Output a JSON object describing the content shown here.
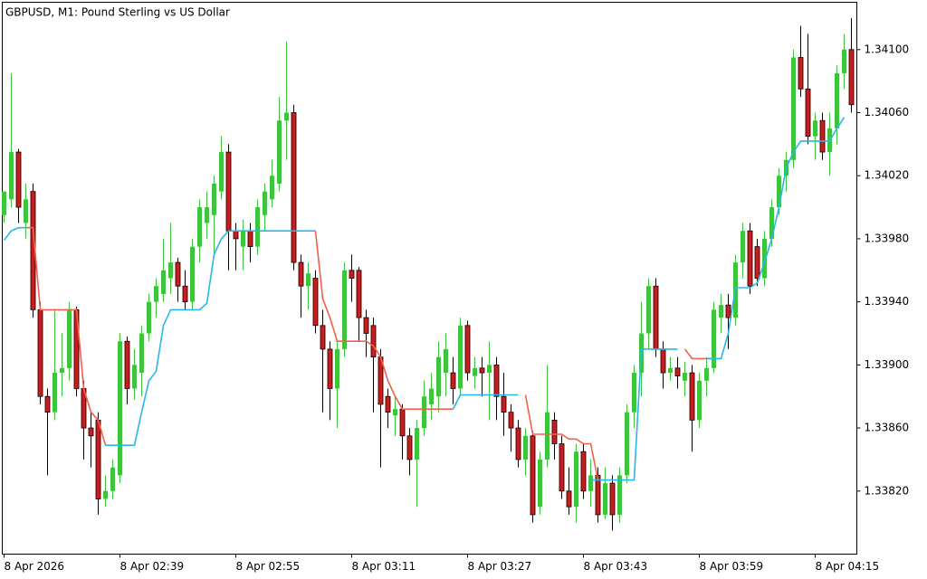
{
  "chart_data": {
    "type": "candlestick",
    "title": "GBPUSD, M1:  Pound Sterling vs US Dollar",
    "up_color": "#3cc43c",
    "down_color": "#d01b1b",
    "down_outline": "#000000",
    "xlim": [
      -0.25,
      117.75
    ],
    "ylim": [
      1.3378,
      1.3413
    ],
    "xticks": [
      {
        "value": 0,
        "label": "8 Apr 2026"
      },
      {
        "value": 16,
        "label": "8 Apr 02:39"
      },
      {
        "value": 32,
        "label": "8 Apr 02:55"
      },
      {
        "value": 48,
        "label": "8 Apr 03:11"
      },
      {
        "value": 64,
        "label": "8 Apr 03:27"
      },
      {
        "value": 80,
        "label": "8 Apr 03:43"
      },
      {
        "value": 96,
        "label": "8 Apr 03:59"
      },
      {
        "value": 112,
        "label": "8 Apr 04:15"
      }
    ],
    "yticks": [
      {
        "value": 1.341,
        "label": "1.34100"
      },
      {
        "value": 1.3406,
        "label": "1.34060"
      },
      {
        "value": 1.3402,
        "label": "1.34020"
      },
      {
        "value": 1.3398,
        "label": "1.33980"
      },
      {
        "value": 1.3394,
        "label": "1.33940"
      },
      {
        "value": 1.339,
        "label": "1.33900"
      },
      {
        "value": 1.3386,
        "label": "1.33860"
      },
      {
        "value": 1.3382,
        "label": "1.33820"
      }
    ],
    "open": [
      1.33995,
      1.34005,
      1.34035,
      1.3399,
      1.3401,
      1.33935,
      1.3388,
      1.3387,
      1.33895,
      1.33898,
      1.33935,
      1.33885,
      1.3386,
      1.33865,
      1.33815,
      1.3382,
      1.3383,
      1.33915,
      1.33885,
      1.33895,
      1.3392,
      1.3394,
      1.33945,
      1.33955,
      1.33965,
      1.3395,
      1.3394,
      1.33975,
      1.3399,
      1.33995,
      1.3401,
      1.34035,
      1.33985,
      1.33975,
      1.33985,
      1.33975,
      1.33995,
      1.34005,
      1.34015,
      1.34055,
      1.3406,
      1.33965,
      1.3395,
      1.33955,
      1.33925,
      1.3391,
      1.33885,
      1.3391,
      1.3396,
      1.3396,
      1.3393,
      1.33925,
      1.33905,
      1.3388,
      1.33868,
      1.33872,
      1.33855,
      1.3384,
      1.3386,
      1.33875,
      1.3388,
      1.33895,
      1.33895,
      1.33885,
      1.33925,
      1.33893,
      1.33898,
      1.33895,
      1.339,
      1.3388,
      1.3387,
      1.3386,
      1.3384,
      1.33855,
      1.3381,
      1.3384,
      1.33865,
      1.3385,
      1.3382,
      1.3381,
      1.33845,
      1.3382,
      1.3383,
      1.33805,
      1.33825,
      1.33805,
      1.3383,
      1.3387,
      1.33895,
      1.3392,
      1.3395,
      1.3391,
      1.33895,
      1.33898,
      1.3389,
      1.33895,
      1.33865,
      1.3389,
      1.33898,
      1.3393,
      1.33938,
      1.3393,
      1.33965,
      1.33985,
      1.33975,
      1.33955,
      1.3398,
      1.34,
      1.3402,
      1.3403,
      1.34095,
      1.34075,
      1.34045,
      1.34055,
      1.34035,
      1.3405,
      1.34085,
      1.341
    ],
    "high": [
      1.3401,
      1.34085,
      1.34037,
      1.34015,
      1.34015,
      1.3394,
      1.33885,
      1.33935,
      1.3392,
      1.3394,
      1.33937,
      1.3389,
      1.3387,
      1.3387,
      1.3383,
      1.3384,
      1.3392,
      1.33918,
      1.3391,
      1.33925,
      1.33945,
      1.33955,
      1.3398,
      1.3399,
      1.33968,
      1.3396,
      1.3398,
      1.34005,
      1.3401,
      1.3402,
      1.34045,
      1.3404,
      1.3399,
      1.33992,
      1.3399,
      1.34005,
      1.34015,
      1.3403,
      1.3407,
      1.34105,
      1.34065,
      1.3397,
      1.33965,
      1.3396,
      1.33935,
      1.33915,
      1.33915,
      1.33965,
      1.3397,
      1.33962,
      1.33935,
      1.3393,
      1.3391,
      1.33885,
      1.3388,
      1.33875,
      1.3386,
      1.33865,
      1.3389,
      1.33895,
      1.33915,
      1.3392,
      1.33905,
      1.3393,
      1.33928,
      1.33905,
      1.33905,
      1.33915,
      1.33905,
      1.33895,
      1.33875,
      1.33865,
      1.3386,
      1.33858,
      1.33845,
      1.339,
      1.3387,
      1.33855,
      1.33835,
      1.3385,
      1.3385,
      1.3384,
      1.33835,
      1.33835,
      1.3383,
      1.33835,
      1.33875,
      1.339,
      1.3394,
      1.33955,
      1.33955,
      1.33915,
      1.33905,
      1.33905,
      1.33902,
      1.339,
      1.33895,
      1.33905,
      1.3394,
      1.33945,
      1.33945,
      1.3397,
      1.3399,
      1.3399,
      1.3398,
      1.33985,
      1.34005,
      1.34025,
      1.34035,
      1.341,
      1.34115,
      1.3411,
      1.3406,
      1.3406,
      1.3406,
      1.3409,
      1.3411,
      1.3412
    ],
    "low": [
      1.3399,
      1.34,
      1.3399,
      1.3398,
      1.3393,
      1.33875,
      1.3383,
      1.33865,
      1.3388,
      1.3389,
      1.3388,
      1.3384,
      1.33835,
      1.33805,
      1.3381,
      1.33815,
      1.33825,
      1.33875,
      1.33878,
      1.3388,
      1.33915,
      1.3393,
      1.3394,
      1.33945,
      1.3394,
      1.33935,
      1.33935,
      1.33965,
      1.3398,
      1.3397,
      1.34005,
      1.3396,
      1.3396,
      1.3396,
      1.33965,
      1.3397,
      1.33985,
      1.34,
      1.3401,
      1.3403,
      1.3396,
      1.3393,
      1.33935,
      1.3392,
      1.3387,
      1.33865,
      1.3386,
      1.33905,
      1.3394,
      1.33915,
      1.33905,
      1.3387,
      1.33835,
      1.3386,
      1.33855,
      1.3384,
      1.3383,
      1.3381,
      1.33855,
      1.33865,
      1.3387,
      1.3388,
      1.33875,
      1.3388,
      1.3389,
      1.33885,
      1.3388,
      1.33865,
      1.33865,
      1.33855,
      1.33845,
      1.33835,
      1.3383,
      1.338,
      1.33805,
      1.33835,
      1.3384,
      1.33815,
      1.33805,
      1.338,
      1.33815,
      1.3381,
      1.338,
      1.33802,
      1.33795,
      1.338,
      1.33825,
      1.3386,
      1.3388,
      1.3391,
      1.33905,
      1.33885,
      1.3389,
      1.33885,
      1.3388,
      1.33845,
      1.3386,
      1.3388,
      1.33895,
      1.3392,
      1.3391,
      1.33925,
      1.33955,
      1.33945,
      1.3395,
      1.3395,
      1.33975,
      1.33995,
      1.3401,
      1.34025,
      1.3407,
      1.3404,
      1.3403,
      1.3403,
      1.3402,
      1.3404,
      1.34075,
      1.3406
    ],
    "close": [
      1.3401,
      1.34035,
      1.34,
      1.34005,
      1.33935,
      1.3388,
      1.3387,
      1.33895,
      1.33898,
      1.33935,
      1.33885,
      1.3386,
      1.33855,
      1.33815,
      1.3382,
      1.33835,
      1.33915,
      1.33885,
      1.339,
      1.3392,
      1.3394,
      1.3395,
      1.3396,
      1.33965,
      1.3395,
      1.3394,
      1.33975,
      1.34,
      1.34,
      1.34015,
      1.34035,
      1.33985,
      1.3398,
      1.33985,
      1.33975,
      1.34,
      1.3401,
      1.3402,
      1.34055,
      1.3406,
      1.33965,
      1.3395,
      1.33958,
      1.33925,
      1.3391,
      1.33885,
      1.3391,
      1.3396,
      1.33955,
      1.3393,
      1.3392,
      1.33905,
      1.33875,
      1.3387,
      1.33872,
      1.33855,
      1.3384,
      1.3386,
      1.3388,
      1.33885,
      1.33905,
      1.3391,
      1.33885,
      1.33925,
      1.33895,
      1.33898,
      1.33895,
      1.339,
      1.3388,
      1.3387,
      1.3386,
      1.3384,
      1.33855,
      1.33805,
      1.3384,
      1.3387,
      1.3385,
      1.3382,
      1.3381,
      1.33845,
      1.3382,
      1.3383,
      1.33805,
      1.33825,
      1.33805,
      1.3383,
      1.3387,
      1.33895,
      1.3392,
      1.3395,
      1.3391,
      1.33895,
      1.33898,
      1.33893,
      1.33895,
      1.33865,
      1.3389,
      1.33898,
      1.33935,
      1.33938,
      1.3393,
      1.33965,
      1.33985,
      1.3395,
      1.33955,
      1.3398,
      1.34,
      1.3402,
      1.3403,
      1.34095,
      1.34075,
      1.34045,
      1.34055,
      1.34035,
      1.3405,
      1.34085,
      1.341,
      1.34065
    ],
    "lines": [
      {
        "color": "#f0604c",
        "values": [
          null,
          null,
          null,
          1.33987,
          1.33987,
          1.33935,
          1.33935,
          1.33935,
          1.33935,
          1.33935,
          1.33935,
          1.33885,
          1.3387,
          1.33865,
          1.33849,
          null,
          null,
          null,
          null,
          null,
          null,
          null,
          null,
          null,
          null,
          null,
          null,
          null,
          null,
          null,
          null,
          null,
          null,
          null,
          null,
          null,
          null,
          null,
          null,
          null,
          null,
          null,
          null,
          1.33985,
          1.33942,
          1.3393,
          1.33915,
          1.33915,
          1.33915,
          1.33915,
          1.33915,
          1.33912,
          1.33905,
          1.3389,
          1.3388,
          1.33872,
          1.33872,
          1.33872,
          1.33872,
          1.33872,
          1.33872,
          1.33872,
          1.33872,
          null,
          null,
          null,
          null,
          null,
          null,
          null,
          null,
          null,
          1.33881,
          1.33856,
          1.33856,
          1.33856,
          1.33856,
          1.33856,
          1.33853,
          1.33853,
          1.3385,
          1.3385,
          1.33827,
          null,
          null,
          null,
          null,
          null,
          null,
          null,
          null,
          null,
          null,
          null,
          1.3391,
          1.33904,
          1.33904,
          1.33904,
          1.33904,
          null,
          null,
          null,
          null,
          null,
          null,
          null,
          null,
          null,
          null,
          null,
          null,
          null,
          null,
          null,
          null,
          null,
          null,
          null
        ]
      },
      {
        "color": "#29b6e8",
        "values": [
          1.33979,
          1.33985,
          1.33987,
          1.33987,
          null,
          null,
          null,
          null,
          null,
          null,
          null,
          null,
          null,
          null,
          1.33849,
          1.33849,
          1.33849,
          1.33849,
          1.33849,
          1.3387,
          1.3389,
          1.33896,
          1.33925,
          1.33935,
          1.33935,
          1.33935,
          1.33935,
          1.33935,
          1.33939,
          1.3397,
          1.3398,
          1.33985,
          1.33985,
          1.33985,
          1.33985,
          1.33985,
          1.33985,
          1.33985,
          1.33985,
          1.33985,
          1.33985,
          1.33985,
          1.33985,
          1.33985,
          null,
          null,
          null,
          null,
          null,
          null,
          null,
          null,
          null,
          null,
          null,
          null,
          null,
          null,
          null,
          null,
          null,
          null,
          1.33872,
          1.33881,
          1.33881,
          1.33881,
          1.33881,
          1.33881,
          1.33881,
          1.33881,
          1.33881,
          1.33881,
          null,
          null,
          null,
          null,
          null,
          null,
          null,
          null,
          null,
          1.33827,
          1.33827,
          1.33827,
          1.33827,
          1.33827,
          1.33827,
          1.33827,
          1.3391,
          1.3391,
          1.3391,
          1.3391,
          1.3391,
          1.3391,
          null,
          null,
          null,
          1.33904,
          1.33904,
          1.33904,
          1.3392,
          1.33949,
          1.33949,
          1.33949,
          1.33952,
          1.33965,
          1.3398,
          1.34,
          1.34025,
          1.34035,
          1.34042,
          1.34042,
          1.34042,
          1.34042,
          1.34042,
          1.3405,
          1.34057
        ]
      }
    ]
  }
}
